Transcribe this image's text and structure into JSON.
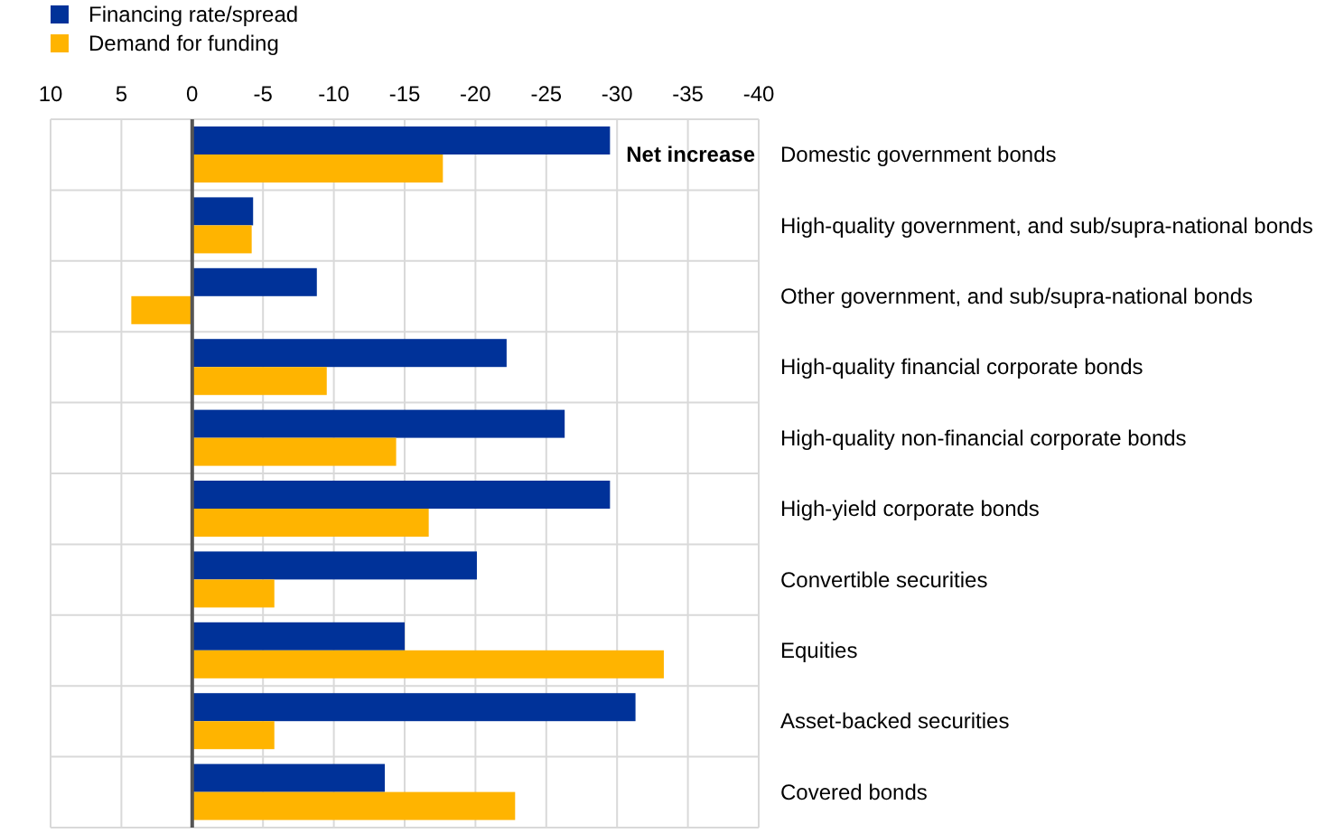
{
  "chart_data": {
    "type": "bar",
    "orientation": "horizontal",
    "categories": [
      "Domestic government bonds",
      "High-quality government, and sub/supra-national bonds",
      "Other government, and sub/supra-national bonds",
      "High-quality financial corporate bonds",
      "High-quality non-financial corporate bonds",
      "High-yield corporate bonds",
      "Convertible securities",
      "Equities",
      "Asset-backed securities",
      "Covered bonds"
    ],
    "series": [
      {
        "name": "Financing rate/spread",
        "color": "#003299",
        "values": [
          -29.5,
          -4.3,
          -8.8,
          -22.2,
          -26.3,
          -29.5,
          -20.1,
          -15.0,
          -31.3,
          -13.6
        ]
      },
      {
        "name": "Demand for funding",
        "color": "#ffb400",
        "values": [
          -17.7,
          -4.2,
          4.3,
          -9.5,
          -14.4,
          -16.7,
          -5.8,
          -33.3,
          -5.8,
          -22.8
        ]
      }
    ],
    "xlim": [
      10,
      -40
    ],
    "xticks": [
      10,
      5,
      0,
      -5,
      -10,
      -15,
      -20,
      -25,
      -30,
      -35,
      -40
    ],
    "grid": true,
    "legend": "top left",
    "annotations": [
      "Net increase"
    ]
  }
}
